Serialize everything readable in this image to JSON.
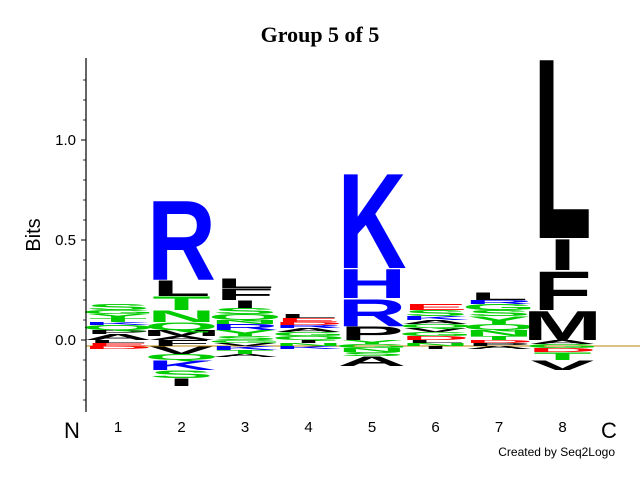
{
  "chart_data": {
    "type": "sequence-logo",
    "title": "Group 5 of 5",
    "ylabel": "Bits",
    "y_ticks": [
      {
        "value": 1.0,
        "label": "1.0"
      },
      {
        "value": 0.5,
        "label": "0.5"
      },
      {
        "value": 0.0,
        "label": "0.0"
      }
    ],
    "ylim": [
      -0.35,
      1.4
    ],
    "positions": [
      "1",
      "2",
      "3",
      "4",
      "5",
      "6",
      "7",
      "8"
    ],
    "n_terminal_label": "N",
    "c_terminal_label": "C",
    "credit": "Created by Seq2Logo",
    "colors": {
      "basic": "#0000ff",
      "polar": "#00cc00",
      "acidic": "#ff0000",
      "hydrophobic": "#000000",
      "other": "#800080",
      "baseline": "#b8860b"
    },
    "columns": [
      {
        "pos": "1",
        "above": [
          [
            "A",
            0.03
          ],
          [
            "P",
            0.02
          ],
          [
            "Q",
            0.025
          ],
          [
            "K",
            0.015
          ],
          [
            "T",
            0.02
          ],
          [
            "Y",
            0.02
          ],
          [
            "G",
            0.02
          ],
          [
            "S",
            0.03
          ]
        ],
        "below": [
          [
            "L",
            0.015
          ],
          [
            "E",
            0.015
          ],
          [
            "D",
            0.015
          ]
        ]
      },
      {
        "pos": "2",
        "above": [
          [
            "A",
            0.02
          ],
          [
            "M",
            0.03
          ],
          [
            "Q",
            0.04
          ],
          [
            "N",
            0.06
          ],
          [
            "T",
            0.07
          ],
          [
            "L",
            0.08
          ],
          [
            "R",
            0.41
          ]
        ],
        "below": [
          [
            "F",
            0.03
          ],
          [
            "V",
            0.04
          ],
          [
            "Q",
            0.03
          ],
          [
            "K",
            0.05
          ],
          [
            "S",
            0.04
          ],
          [
            "I",
            0.04
          ]
        ]
      },
      {
        "pos": "3",
        "above": [
          [
            "S",
            0.02
          ],
          [
            "Y",
            0.03
          ],
          [
            "R",
            0.03
          ],
          [
            "N",
            0.02
          ],
          [
            "Q",
            0.03
          ],
          [
            "S",
            0.03
          ],
          [
            "I",
            0.04
          ],
          [
            "F",
            0.06
          ],
          [
            "L",
            0.05
          ]
        ],
        "below": [
          [
            "G",
            0.015
          ],
          [
            "V",
            0.015
          ],
          [
            "K",
            0.02
          ],
          [
            "T",
            0.02
          ],
          [
            "A",
            0.015
          ]
        ]
      },
      {
        "pos": "4",
        "above": [
          [
            "Q",
            0.02
          ],
          [
            "G",
            0.02
          ],
          [
            "A",
            0.02
          ],
          [
            "R",
            0.015
          ],
          [
            "D",
            0.015
          ],
          [
            "E",
            0.02
          ],
          [
            "L",
            0.02
          ]
        ],
        "below": [
          [
            "I",
            0.015
          ],
          [
            "N",
            0.015
          ],
          [
            "K",
            0.015
          ]
        ]
      },
      {
        "pos": "5",
        "above": [
          [
            "P",
            0.07
          ],
          [
            "R",
            0.14
          ],
          [
            "H",
            0.15
          ],
          [
            "K",
            0.49
          ]
        ],
        "below": [
          [
            "Y",
            0.02
          ],
          [
            "G",
            0.02
          ],
          [
            "N",
            0.02
          ],
          [
            "S",
            0.02
          ],
          [
            "A",
            0.05
          ]
        ]
      },
      {
        "pos": "6",
        "above": [
          [
            "D",
            0.02
          ],
          [
            "G",
            0.02
          ],
          [
            "V",
            0.02
          ],
          [
            "Q",
            0.02
          ],
          [
            "A",
            0.02
          ],
          [
            "K",
            0.02
          ],
          [
            "S",
            0.03
          ],
          [
            "E",
            0.03
          ]
        ],
        "below": [
          [
            "L",
            0.015
          ],
          [
            "N",
            0.015
          ],
          [
            "I",
            0.015
          ]
        ]
      },
      {
        "pos": "7",
        "above": [
          [
            "T",
            0.02
          ],
          [
            "N",
            0.03
          ],
          [
            "Q",
            0.03
          ],
          [
            "Y",
            0.04
          ],
          [
            "S",
            0.03
          ],
          [
            "G",
            0.03
          ],
          [
            "R",
            0.02
          ],
          [
            "L",
            0.04
          ]
        ],
        "below": [
          [
            "D",
            0.015
          ],
          [
            "P",
            0.015
          ],
          [
            "A",
            0.015
          ]
        ]
      },
      {
        "pos": "8",
        "above": [
          [
            "M",
            0.15
          ],
          [
            "F",
            0.2
          ],
          [
            "I",
            0.16
          ],
          [
            "L",
            0.93
          ]
        ],
        "below": [
          [
            "A",
            0.02
          ],
          [
            "G",
            0.02
          ],
          [
            "D",
            0.02
          ],
          [
            "T",
            0.04
          ],
          [
            "V",
            0.05
          ]
        ]
      }
    ]
  }
}
